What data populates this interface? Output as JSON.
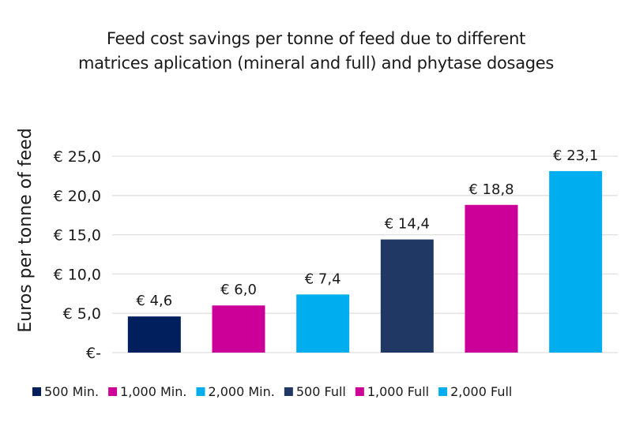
{
  "chart_data": {
    "type": "bar",
    "title": [
      "Feed cost savings per tonne of feed due to different",
      "matrices aplication (mineral and full) and phytase dosages"
    ],
    "xlabel": "",
    "ylabel": "Euros per tonne of feed",
    "ylim": [
      0,
      25
    ],
    "yticks": [
      0,
      5,
      10,
      15,
      20,
      25
    ],
    "ytick_labels": [
      "€-",
      "€ 5,0",
      "€ 10,0",
      "€ 15,0",
      "€ 20,0",
      "€ 25,0"
    ],
    "grid": true,
    "legend_position": "bottom",
    "categories": [
      "500 Min.",
      "1,000 Min.",
      "2,000 Min.",
      "500 Full",
      "1,000 Full",
      "2,000 Full"
    ],
    "values": [
      4.6,
      6.0,
      7.4,
      14.4,
      18.8,
      23.1
    ],
    "data_labels": [
      "€ 4,6",
      "€ 6,0",
      "€ 7,4",
      "€ 14,4",
      "€ 18,8",
      "€ 23,1"
    ],
    "colors": [
      "#001f5c",
      "#cc0099",
      "#00aeef",
      "#1f3864",
      "#cc0099",
      "#00aeef"
    ],
    "gridline_color": "#e0e0e0"
  }
}
